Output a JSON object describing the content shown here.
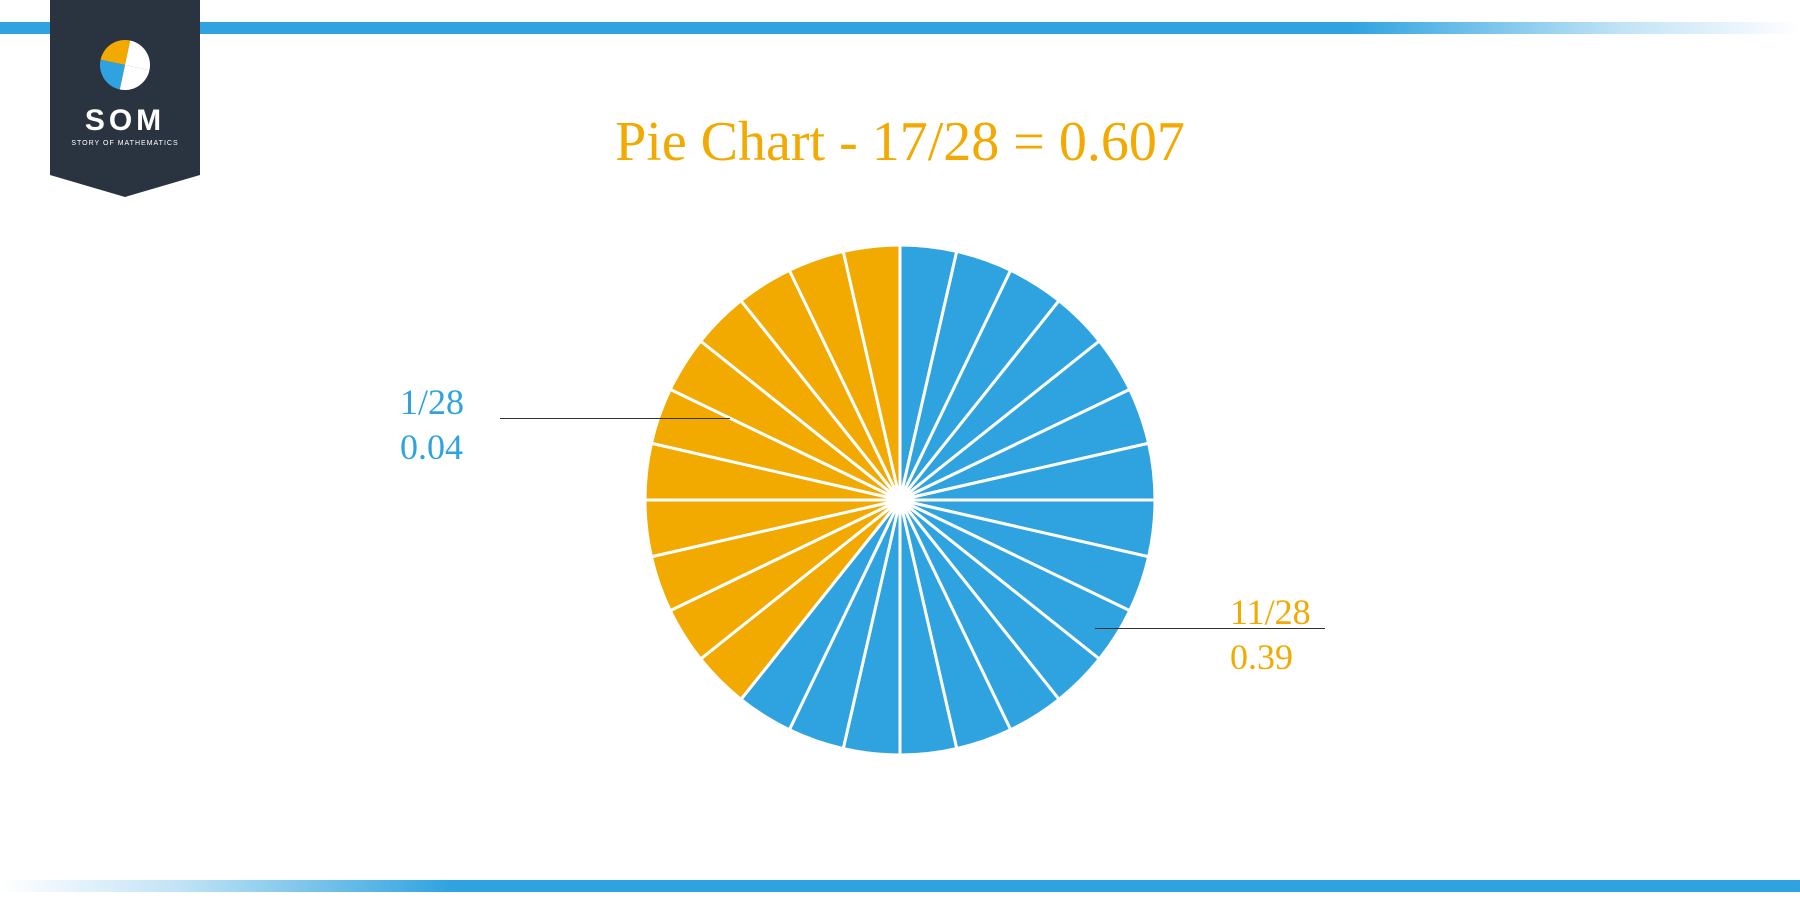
{
  "logo": {
    "text": "SOM",
    "subtext": "STORY OF MATHEMATICS",
    "badge_color": "#2a3440",
    "icon_colors": {
      "tl": "#f2a900",
      "tr": "#ffffff",
      "bl": "#2fa3e0",
      "br": "#ffffff"
    }
  },
  "title": "Pie Chart - 17/28 = 0.607",
  "title_color": "#f2a900",
  "title_fontsize": 56,
  "bar_color": "#2fa3e0",
  "chart": {
    "type": "pie",
    "total_slices": 28,
    "blue_slices": 17,
    "orange_slices": 11,
    "start_angle_deg": -90,
    "radius": 255,
    "colors": {
      "blue": "#2fa3e0",
      "orange": "#f2a900",
      "divider": "#ffffff"
    },
    "divider_width": 3,
    "background_color": "#ffffff"
  },
  "labels": {
    "left": {
      "line1": "1/28",
      "line2": "0.04",
      "color": "#2fa3e0",
      "fontsize": 36
    },
    "right": {
      "line1": "11/28",
      "line2": "0.39",
      "color": "#f2a900",
      "fontsize": 36
    }
  }
}
